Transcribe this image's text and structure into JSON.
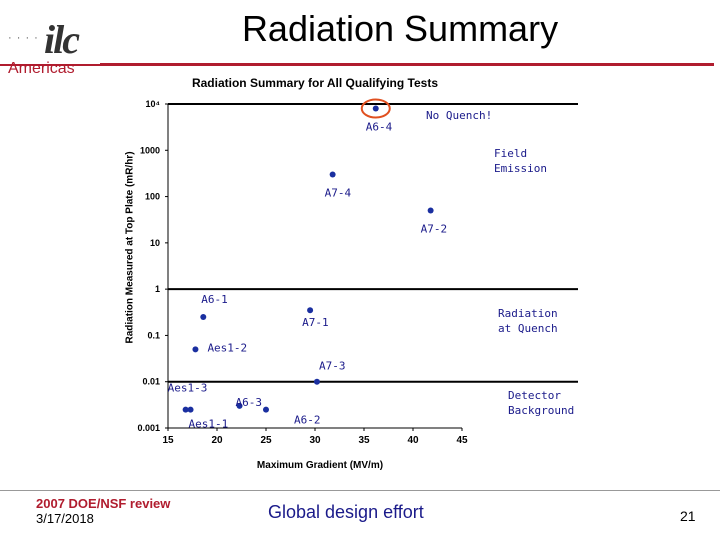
{
  "header": {
    "logo_text": "ilc",
    "logo_dots": "· · · ·",
    "logo_region": "Americas",
    "slide_title": "Radiation Summary"
  },
  "chart_data": {
    "type": "scatter",
    "title": "Radiation Summary for All Qualifying Tests",
    "xlabel": "Maximum Gradient (MV/m)",
    "ylabel": "Radiation Measured at Top Plate (mR/hr)",
    "xlim": [
      15,
      45
    ],
    "ylim": [
      0.001,
      10000
    ],
    "y_scale": "log",
    "x_ticks": [
      "15",
      "20",
      "25",
      "30",
      "35",
      "40",
      "45"
    ],
    "y_ticks": [
      "10⁴",
      "1000",
      "100",
      "10",
      "1",
      "0.1",
      "0.01",
      "0.001"
    ],
    "reference_lines": [
      10000,
      1,
      0.01
    ],
    "points": [
      {
        "label": "A6-4",
        "x": 36.2,
        "y": 8000,
        "highlight": true
      },
      {
        "label": "A7-4",
        "x": 31.8,
        "y": 300
      },
      {
        "label": "A7-2",
        "x": 41.8,
        "y": 50
      },
      {
        "label": "A6-1",
        "x": 18.6,
        "y": 0.25
      },
      {
        "label": "A7-1",
        "x": 29.5,
        "y": 0.35
      },
      {
        "label": "Aes1-2",
        "x": 17.8,
        "y": 0.05
      },
      {
        "label": "A7-3",
        "x": 30.2,
        "y": 0.01
      },
      {
        "label": "A6-3",
        "x": 22.3,
        "y": 0.003
      },
      {
        "label": "Aes1-3",
        "x": 16.8,
        "y": 0.0025
      },
      {
        "label": "Aes1-1",
        "x": 17.3,
        "y": 0.0025
      },
      {
        "label": "A6-2",
        "x": 25.0,
        "y": 0.0025
      }
    ],
    "region_labels": [
      "No Quench!",
      "Field\nEmission",
      "Radiation\nat Quench",
      "Detector\nBackground"
    ],
    "colors": {
      "point": "#1a2fa0",
      "highlight_ring": "#e05020",
      "annotation_text": "#1a1a8a"
    }
  },
  "footer": {
    "review": "2007 DOE/NSF review",
    "date": "3/17/2018",
    "center": "Global design effort",
    "page": "21"
  }
}
